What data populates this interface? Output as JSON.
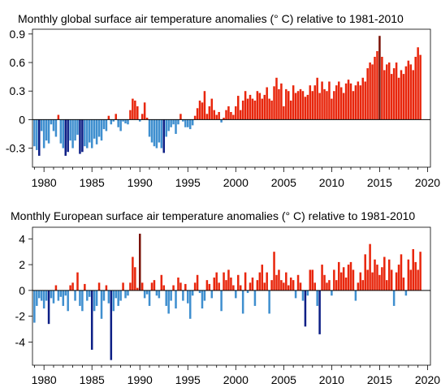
{
  "chart_data": [
    {
      "type": "bar",
      "title": "Monthly  global surface air temperature anomalies (° C) relative to 1981-2010",
      "xlabel": "",
      "ylabel": "",
      "xlim": [
        1978.8,
        2020.3
      ],
      "ylim": [
        -0.5,
        0.95
      ],
      "x_ticks": [
        1980,
        1985,
        1990,
        1995,
        2000,
        2005,
        2010,
        2015,
        2020
      ],
      "y_ticks": [
        -0.3,
        0,
        0.3,
        0.6,
        0.9
      ],
      "y_tick_labels": [
        "-0.3",
        "0",
        "0.3",
        "0.6",
        "0.9"
      ],
      "grid": false,
      "colors": {
        "positive": "#e8260c",
        "negative": "#3f8fcf",
        "extreme_positive": "#7a1206",
        "extreme_negative": "#0d1f86"
      },
      "series": [
        {
          "period_start": 1979,
          "points_per_year": 4,
          "values": [
            -0.28,
            -0.32,
            -0.38,
            -0.12,
            -0.3,
            -0.22,
            -0.25,
            -0.05,
            -0.12,
            -0.18,
            0.05,
            -0.25,
            -0.3,
            -0.38,
            -0.34,
            -0.22,
            -0.3,
            -0.22,
            -0.16,
            -0.36,
            -0.34,
            -0.28,
            -0.3,
            -0.24,
            -0.3,
            -0.2,
            -0.26,
            -0.18,
            -0.22,
            -0.1,
            -0.12,
            0.04,
            -0.05,
            -0.02,
            0.06,
            -0.08,
            -0.12,
            -0.02,
            -0.04,
            -0.05,
            0.1,
            0.22,
            0.2,
            0.14,
            -0.02,
            0.06,
            0.18,
            0.02,
            -0.18,
            -0.24,
            -0.28,
            -0.3,
            -0.24,
            -0.3,
            -0.35,
            -0.18,
            -0.12,
            -0.08,
            -0.05,
            -0.15,
            -0.05,
            0.06,
            -0.02,
            -0.08,
            -0.08,
            -0.1,
            -0.06,
            0.04,
            0.12,
            0.2,
            0.18,
            0.3,
            0.06,
            0.14,
            0.22,
            0.1,
            0.05,
            0.08,
            -0.03,
            0.02,
            0.1,
            0.14,
            0.08,
            0.05,
            0.14,
            0.25,
            0.1,
            0.2,
            0.3,
            0.22,
            0.26,
            0.22,
            0.2,
            0.3,
            0.28,
            0.22,
            0.26,
            0.34,
            0.22,
            0.2,
            0.35,
            0.44,
            0.32,
            0.38,
            0.14,
            0.32,
            0.3,
            0.2,
            0.36,
            0.28,
            0.3,
            0.32,
            0.3,
            0.24,
            0.26,
            0.36,
            0.3,
            0.36,
            0.44,
            0.28,
            0.4,
            0.32,
            0.3,
            0.4,
            0.22,
            0.3,
            0.36,
            0.4,
            0.34,
            0.28,
            0.38,
            0.42,
            0.38,
            0.3,
            0.36,
            0.4,
            0.36,
            0.44,
            0.4,
            0.54,
            0.6,
            0.58,
            0.66,
            0.72,
            0.88,
            0.66,
            0.52,
            0.58,
            0.6,
            0.48,
            0.54,
            0.6,
            0.44,
            0.52,
            0.48,
            0.56,
            0.62,
            0.58,
            0.52,
            0.66,
            0.76,
            0.68
          ]
        }
      ]
    },
    {
      "type": "bar",
      "title": "Monthly  European surface air temperature anomalies (° C) relative to 1981-2010",
      "xlabel": "",
      "ylabel": "",
      "xlim": [
        1978.8,
        2020.3
      ],
      "ylim": [
        -5.8,
        4.9
      ],
      "x_ticks": [
        1980,
        1985,
        1990,
        1995,
        2000,
        2005,
        2010,
        2015,
        2020
      ],
      "y_ticks": [
        -4,
        -2,
        0,
        2,
        4
      ],
      "y_tick_labels": [
        "-4",
        "-2",
        "0",
        "2",
        "4"
      ],
      "grid": false,
      "colors": {
        "positive": "#e8260c",
        "negative": "#3f8fcf",
        "extreme_positive": "#7a1206",
        "extreme_negative": "#0d1f86"
      },
      "series": [
        {
          "period_start": 1979,
          "points_per_year": 4,
          "values": [
            -2.5,
            -1.2,
            -0.6,
            -0.8,
            -1.4,
            -0.8,
            -2.6,
            -0.6,
            -1.0,
            0.4,
            -0.8,
            -0.5,
            -1.2,
            -0.4,
            -1.6,
            0.4,
            0.6,
            -0.8,
            1.4,
            -1.2,
            -1.6,
            0.5,
            -0.8,
            -0.5,
            -4.6,
            -1.6,
            -1.2,
            0.6,
            -2.2,
            -0.8,
            0.4,
            -1.0,
            -5.4,
            -1.6,
            -0.6,
            -1.2,
            -0.8,
            0.6,
            -0.6,
            -0.4,
            0.6,
            2.6,
            1.8,
            0.2,
            4.4,
            0.6,
            -0.6,
            -0.3,
            -1.2,
            0.6,
            0.8,
            -0.4,
            -0.6,
            1.2,
            0.4,
            -1.2,
            -1.8,
            -0.8,
            0.4,
            -1.4,
            1.0,
            0.6,
            -0.8,
            0.5,
            -1.0,
            -2.2,
            -0.4,
            0.6,
            1.2,
            -0.2,
            -1.4,
            -0.8,
            0.8,
            0.5,
            -0.6,
            1.0,
            1.4,
            0.6,
            -1.6,
            1.4,
            0.8,
            1.6,
            1.0,
            0.4,
            -0.6,
            1.2,
            0.4,
            -1.8,
            1.4,
            -0.2,
            0.6,
            1.0,
            -1.2,
            0.8,
            1.4,
            2.0,
            0.6,
            1.4,
            -1.8,
            0.8,
            3.0,
            1.2,
            1.6,
            0.8,
            0.6,
            1.4,
            0.4,
            1.0,
            0.8,
            -0.6,
            1.2,
            0.6,
            -0.8,
            -2.8,
            -0.4,
            1.6,
            1.6,
            0.6,
            -1.2,
            -3.4,
            2.0,
            1.2,
            0.6,
            0.8,
            -0.4,
            1.6,
            0.8,
            2.2,
            1.4,
            1.8,
            1.0,
            2.0,
            2.2,
            1.6,
            -0.8,
            0.6,
            1.4,
            0.8,
            2.8,
            1.6,
            3.6,
            1.4,
            2.4,
            2.0,
            1.2,
            1.8,
            2.6,
            0.8,
            2.4,
            1.6,
            -1.2,
            1.4,
            2.0,
            2.8,
            1.0,
            -0.4,
            2.4,
            1.6,
            3.2,
            2.2,
            1.6,
            3.0
          ]
        }
      ]
    }
  ]
}
